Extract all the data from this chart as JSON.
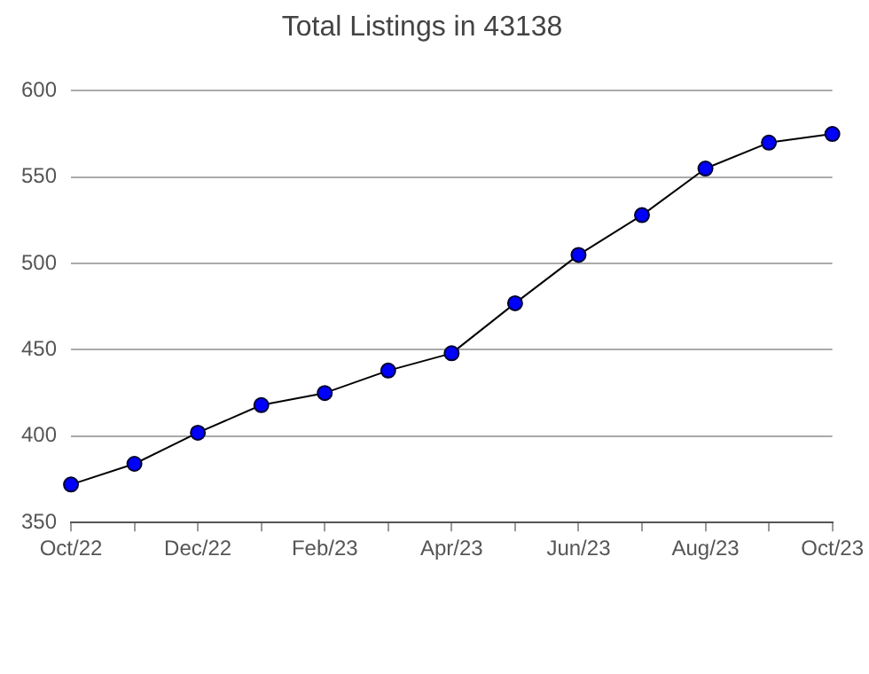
{
  "chart_data": {
    "type": "line",
    "title": "Total Listings in 43138",
    "categories": [
      "Oct/22",
      null,
      "Dec/22",
      null,
      "Feb/23",
      null,
      "Apr/23",
      null,
      "Jun/23",
      null,
      "Aug/23",
      null,
      "Oct/23"
    ],
    "series": [
      {
        "color": "#000000",
        "values": [
          372,
          384,
          402,
          418,
          425,
          438,
          448,
          477,
          505,
          528,
          555,
          570,
          575
        ]
      }
    ],
    "ylim": [
      350,
      600
    ],
    "yticks": [
      350,
      400,
      450,
      500,
      550,
      600
    ],
    "grid": "y",
    "marker": "circle",
    "line_style": "solid",
    "legend": false
  }
}
